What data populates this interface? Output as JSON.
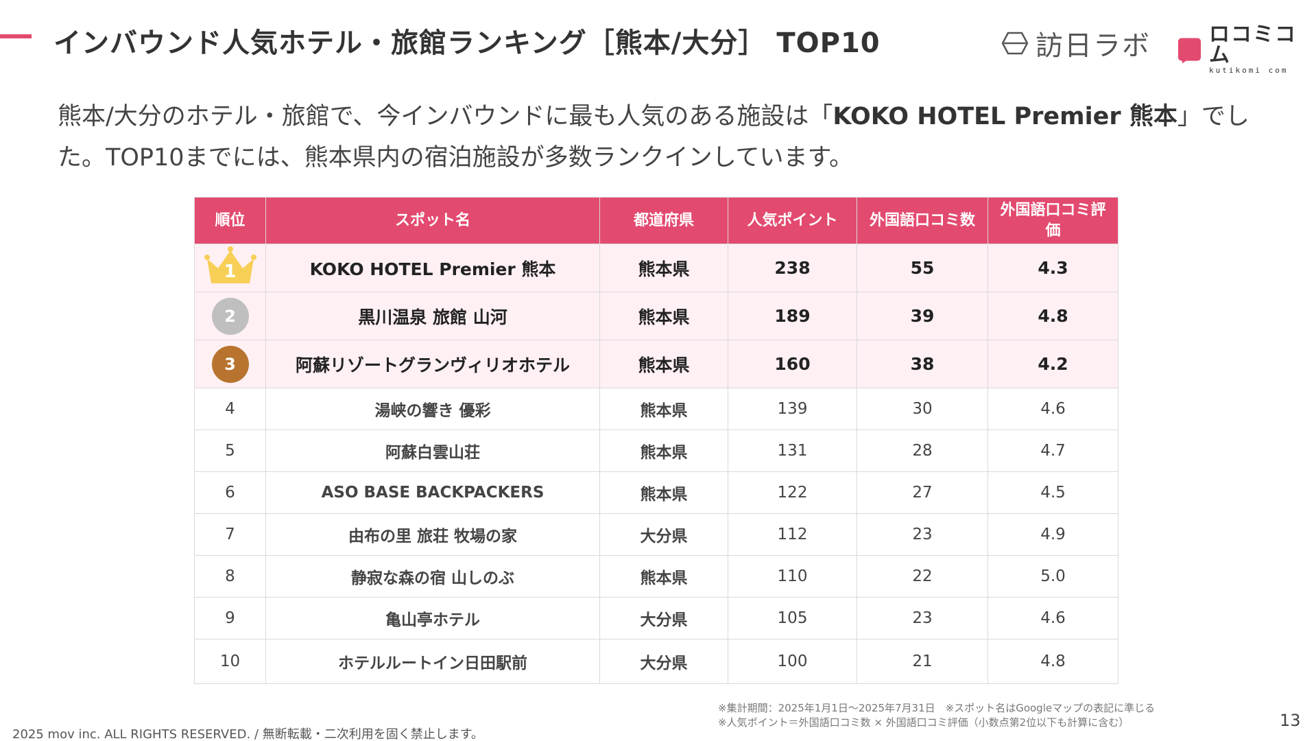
{
  "header": {
    "title": "インバウンド人気ホテル・旅館ランキング［熊本/大分］ TOP10",
    "logo_houmon": "訪日ラボ",
    "logo_kuchikomi": "ロコミコム",
    "logo_kuchikomi_en": "kutikomi com",
    "accent_color": "#e34a6f"
  },
  "lead": {
    "before": "熊本/大分のホテル・旅館で、今インバウンドに最も人気のある施設は「",
    "highlight": "KOKO HOTEL Premier 熊本",
    "after": "」でした。TOP10までには、熊本県内の宿泊施設が多数ランクインしています。"
  },
  "table": {
    "headers": [
      "順位",
      "スポット名",
      "都道府県",
      "人気ポイント",
      "外国語口コミ数",
      "外国語口コミ評価"
    ],
    "rows": [
      {
        "rank": "1",
        "name": "KOKO HOTEL Premier 熊本",
        "pref": "熊本県",
        "points": "238",
        "reviews": "55",
        "rating": "4.3"
      },
      {
        "rank": "2",
        "name": "黒川温泉 旅館 山河",
        "pref": "熊本県",
        "points": "189",
        "reviews": "39",
        "rating": "4.8"
      },
      {
        "rank": "3",
        "name": "阿蘇リゾートグランヴィリオホテル",
        "pref": "熊本県",
        "points": "160",
        "reviews": "38",
        "rating": "4.2"
      },
      {
        "rank": "4",
        "name": "湯峡の響き 優彩",
        "pref": "熊本県",
        "points": "139",
        "reviews": "30",
        "rating": "4.6"
      },
      {
        "rank": "5",
        "name": "阿蘇白雲山荘",
        "pref": "熊本県",
        "points": "131",
        "reviews": "28",
        "rating": "4.7"
      },
      {
        "rank": "6",
        "name": "ASO BASE BACKPACKERS",
        "pref": "熊本県",
        "points": "122",
        "reviews": "27",
        "rating": "4.5"
      },
      {
        "rank": "7",
        "name": "由布の里 旅荘 牧場の家",
        "pref": "大分県",
        "points": "112",
        "reviews": "23",
        "rating": "4.9"
      },
      {
        "rank": "8",
        "name": "静寂な森の宿 山しのぶ",
        "pref": "熊本県",
        "points": "110",
        "reviews": "22",
        "rating": "5.0"
      },
      {
        "rank": "9",
        "name": "亀山亭ホテル",
        "pref": "大分県",
        "points": "105",
        "reviews": "23",
        "rating": "4.6"
      },
      {
        "rank": "10",
        "name": "ホテルルートイン日田駅前",
        "pref": "大分県",
        "points": "100",
        "reviews": "21",
        "rating": "4.8"
      }
    ]
  },
  "notes": {
    "line1": "※集計期間：2025年1月1日〜2025年7月31日　※スポット名はGoogleマップの表記に準じる",
    "line2": "※人気ポイント＝外国語口コミ数 × 外国語口コミ評価（小数点第2位以下も計算に含む）"
  },
  "footer": {
    "copyright": "2025 mov inc. ALL RIGHTS RESERVED. / 無断転載・二次利用を固く禁止します。",
    "page_number": "13"
  }
}
